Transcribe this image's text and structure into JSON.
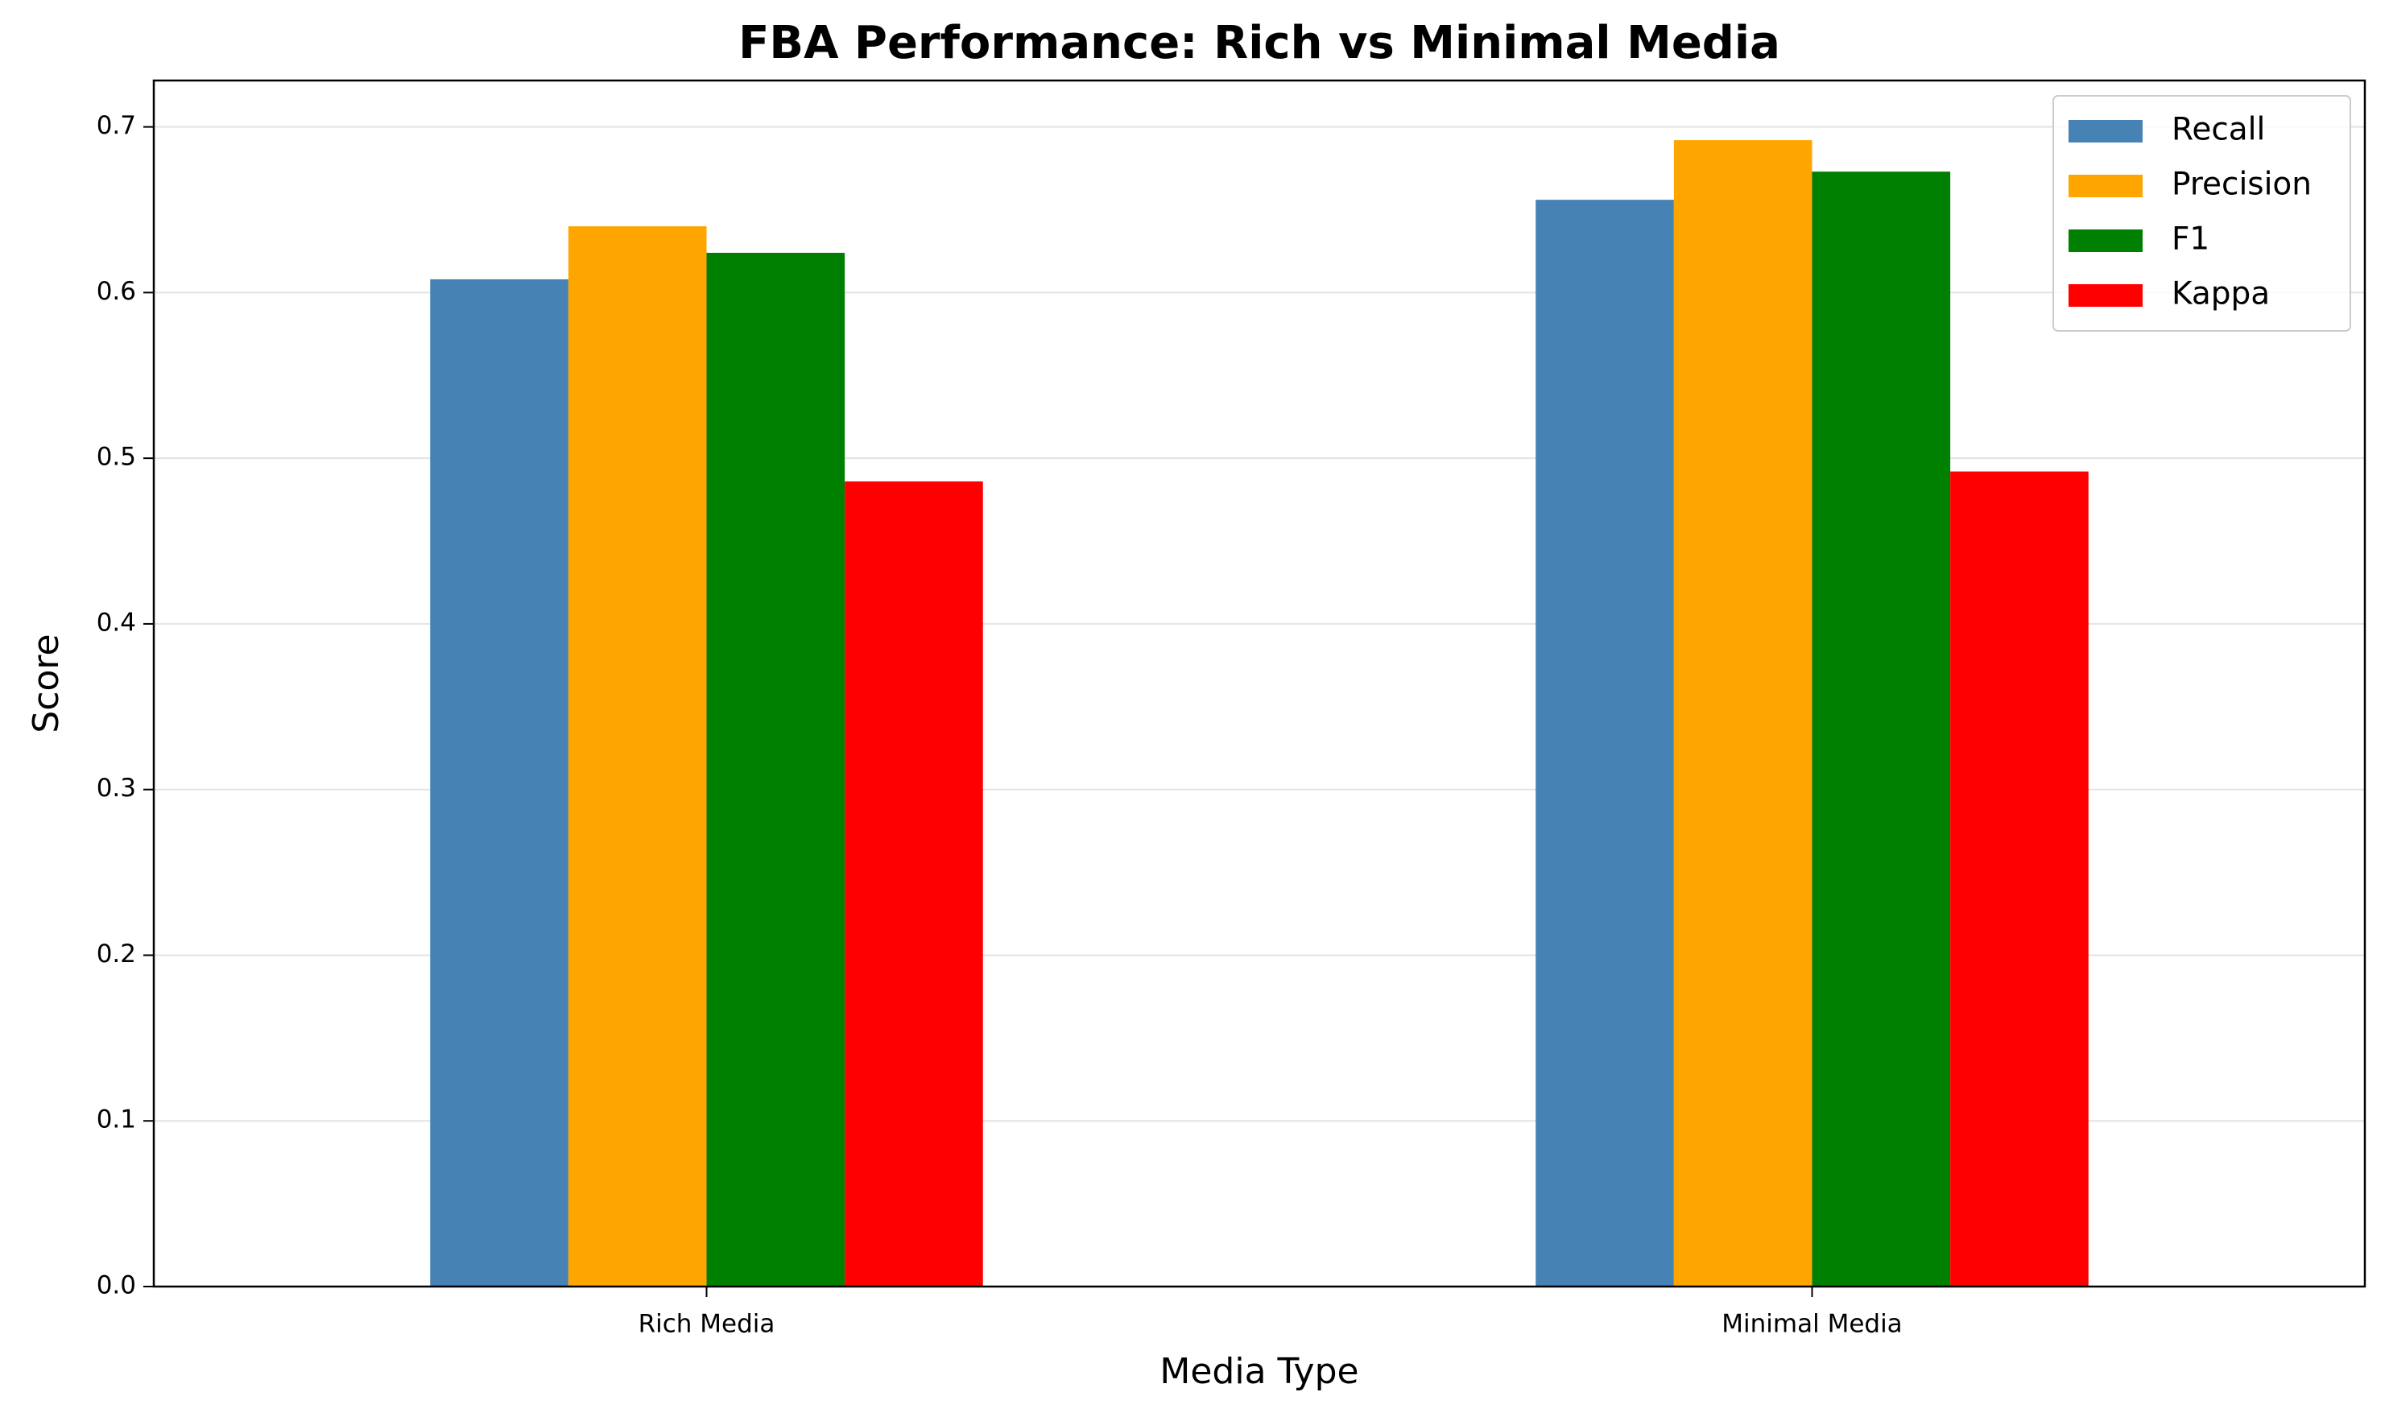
{
  "chart_data": {
    "type": "bar",
    "title": "FBA Performance: Rich vs Minimal Media",
    "x_label": "Media Type",
    "y_label": "Score",
    "categories": [
      "Rich Media",
      "Minimal Media"
    ],
    "series": [
      {
        "name": "Recall",
        "color": "#4682b4",
        "values": [
          0.608,
          0.656
        ]
      },
      {
        "name": "Precision",
        "color": "#ffa500",
        "values": [
          0.64,
          0.692
        ]
      },
      {
        "name": "F1",
        "color": "#008000",
        "values": [
          0.624,
          0.673
        ]
      },
      {
        "name": "Kappa",
        "color": "#ff0000",
        "values": [
          0.486,
          0.492
        ]
      }
    ],
    "ylim": [
      0,
      0.728
    ],
    "yticks": [
      {
        "value": 0,
        "label": "0.0"
      },
      0.1,
      0.2,
      0.3,
      0.4,
      0.5,
      0.6,
      0.7
    ],
    "grid": true,
    "legend": "upper right"
  }
}
